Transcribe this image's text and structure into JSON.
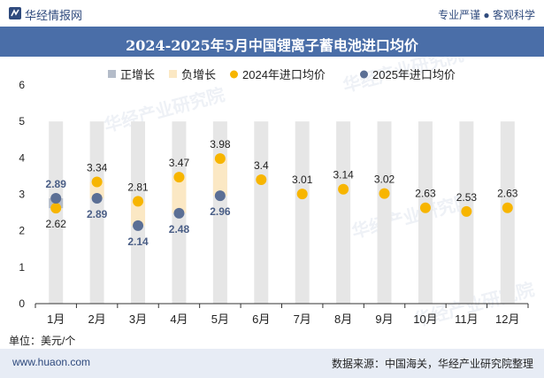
{
  "header": {
    "brand": "华经情报网",
    "slogan": "专业严谨 ● 客观科学"
  },
  "footer": {
    "unit": "单位：美元/个",
    "site": "www.huaon.com",
    "source": "数据来源：中国海关，华经产业研究院整理"
  },
  "watermark": "华经产业研究院",
  "colors": {
    "title_bg": "#4a6ea8",
    "bar_grey": "#e6e6e6",
    "positive": "#b4bcc9",
    "negative": "#fbe8c4",
    "series_2024": "#f7b500",
    "series_2025": "#5b6f95"
  },
  "chart_data": {
    "type": "line",
    "title": "2024-2025年5月中国锂离子蓄电池进口均价",
    "categories": [
      "1月",
      "2月",
      "3月",
      "4月",
      "5月",
      "6月",
      "7月",
      "8月",
      "9月",
      "10月",
      "11月",
      "12月"
    ],
    "ylim": [
      0,
      6
    ],
    "yticks": [
      0,
      1,
      2,
      3,
      4,
      5,
      6
    ],
    "grid": false,
    "legend_position": "top",
    "legend": [
      {
        "name": "正增长",
        "kind": "square",
        "color": "#b4bcc9"
      },
      {
        "name": "负增长",
        "kind": "square",
        "color": "#fbe8c4"
      },
      {
        "name": "2024年进口均价",
        "kind": "dot",
        "color": "#f7b500"
      },
      {
        "name": "2025年进口均价",
        "kind": "dot",
        "color": "#5b6f95"
      }
    ],
    "background_bar_value": 5,
    "series": [
      {
        "name": "2024年进口均价",
        "values": [
          2.62,
          3.34,
          2.81,
          3.47,
          3.98,
          3.4,
          3.01,
          3.14,
          3.02,
          2.63,
          2.53,
          2.63
        ]
      },
      {
        "name": "2025年进口均价",
        "values": [
          2.89,
          2.89,
          2.14,
          2.48,
          2.96,
          null,
          null,
          null,
          null,
          null,
          null,
          null
        ]
      }
    ]
  }
}
